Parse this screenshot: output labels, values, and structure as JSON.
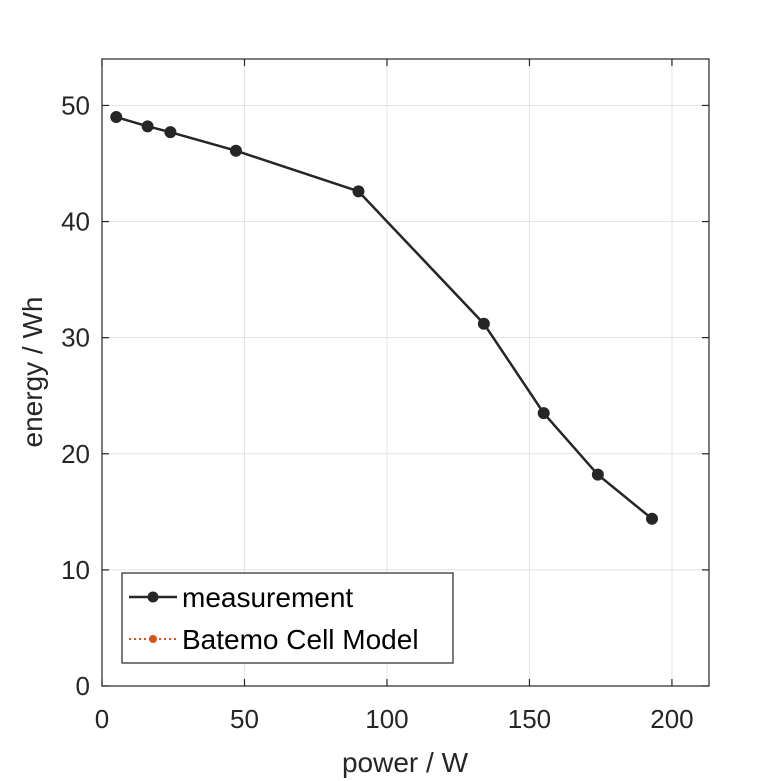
{
  "chart_data": {
    "type": "line",
    "title": "",
    "xlabel": "power / W",
    "ylabel": "energy / Wh",
    "xlim": [
      0,
      213
    ],
    "ylim": [
      0,
      54
    ],
    "xticks": [
      0,
      50,
      100,
      150,
      200
    ],
    "yticks": [
      0,
      10,
      20,
      30,
      40,
      50
    ],
    "xtick_labels": [
      "0",
      "50",
      "100",
      "150",
      "200"
    ],
    "ytick_labels": [
      "0",
      "10",
      "20",
      "30",
      "40",
      "50"
    ],
    "grid": true,
    "legend_position": "bottom-left",
    "series": [
      {
        "name": "measurement",
        "color": "#262626",
        "line_style": "solid",
        "x": [
          5,
          16,
          24,
          47,
          90,
          134,
          155,
          174,
          193
        ],
        "y": [
          49.0,
          48.2,
          47.7,
          46.1,
          42.6,
          31.2,
          23.5,
          18.2,
          14.4
        ]
      },
      {
        "name": "Batemo Cell Model",
        "color": "#d95319",
        "line_style": "dotted",
        "x": [
          5,
          16,
          24,
          47,
          90,
          134,
          155,
          174,
          193
        ],
        "y": [
          49.0,
          48.2,
          47.7,
          46.1,
          42.6,
          31.2,
          23.5,
          18.2,
          14.4
        ]
      }
    ]
  }
}
